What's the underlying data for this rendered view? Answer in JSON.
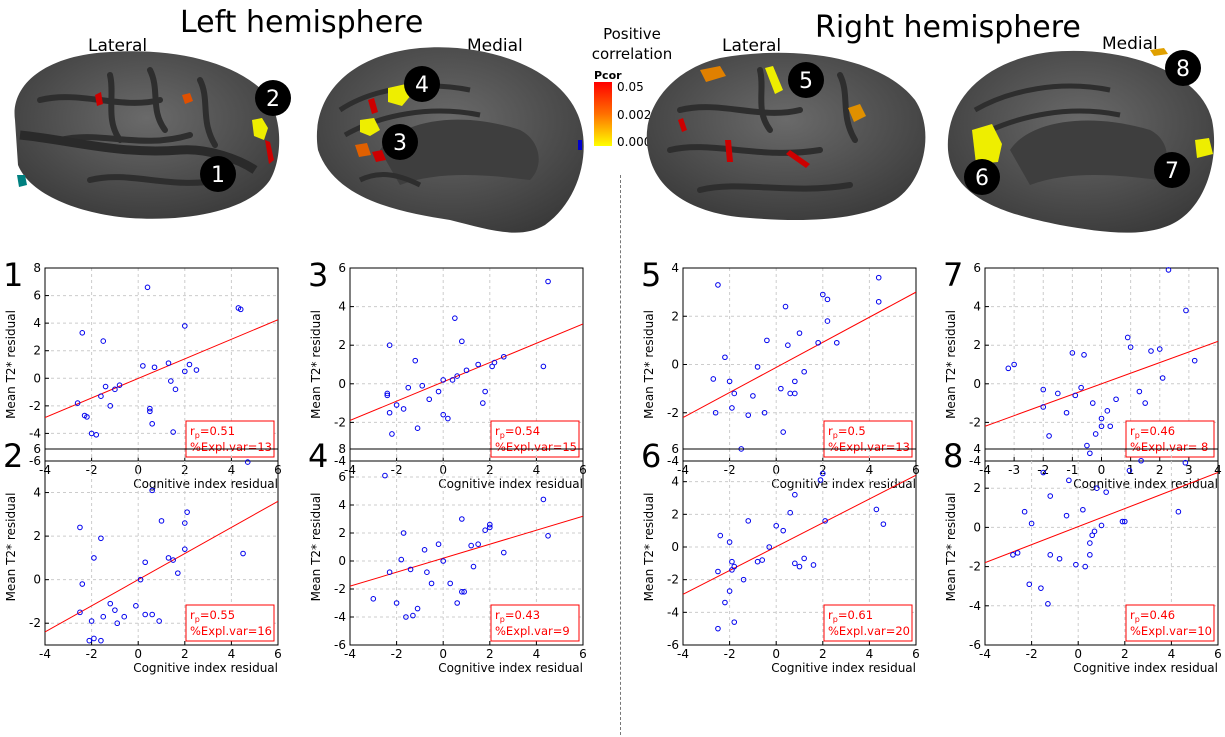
{
  "titles": {
    "left": "Left hemisphere",
    "right": "Right hemisphere",
    "views": [
      "Lateral",
      "Medial",
      "Lateral",
      "Medial"
    ]
  },
  "legend": {
    "title_line1": "Positive",
    "title_line2": "correlation",
    "label": "Pcor",
    "ticks": [
      "0.05",
      "0.002",
      "0.0001"
    ],
    "colors": [
      "#ff0000",
      "#ff8000",
      "#ffff00"
    ]
  },
  "region_markers": [
    "1",
    "2",
    "3",
    "4",
    "5",
    "6",
    "7",
    "8"
  ],
  "colors": {
    "brain_base": "#585858",
    "brain_sulci": "#3c3c3c",
    "points": "#0000ee",
    "fit_line": "#ff0000",
    "stat_text": "#ff0000",
    "grid": "#cccccc"
  },
  "chart_data": [
    {
      "panel": "1",
      "type": "scatter",
      "xlabel": "Cognitive index residual",
      "ylabel": "Mean T2* residual",
      "xlim": [
        -4,
        6
      ],
      "ylim": [
        -6,
        8
      ],
      "xticks": [
        -4,
        -2,
        0,
        2,
        4,
        6
      ],
      "yticks": [
        -6,
        -4,
        -2,
        0,
        2,
        4,
        6,
        8
      ],
      "fit": [
        [
          -4,
          -2.85
        ],
        [
          6,
          4.25
        ]
      ],
      "stat_r": "r",
      "stat_sub": "p",
      "stat_r_value": "=0.51",
      "stat_expl": "%Expl.var=13",
      "points": [
        [
          -2.6,
          -1.8
        ],
        [
          -2.4,
          3.3
        ],
        [
          -2.3,
          -2.7
        ],
        [
          -2.2,
          -2.8
        ],
        [
          -2.0,
          -4.0
        ],
        [
          -1.8,
          -4.1
        ],
        [
          -1.6,
          -1.3
        ],
        [
          -1.5,
          2.7
        ],
        [
          -1.4,
          -0.6
        ],
        [
          -1.2,
          -2.0
        ],
        [
          -1.0,
          -0.8
        ],
        [
          -0.8,
          -0.5
        ],
        [
          0.2,
          0.9
        ],
        [
          0.4,
          6.6
        ],
        [
          0.5,
          -2.4
        ],
        [
          0.5,
          -2.2
        ],
        [
          0.6,
          -3.3
        ],
        [
          0.7,
          0.8
        ],
        [
          1.3,
          1.1
        ],
        [
          1.4,
          -0.2
        ],
        [
          1.5,
          -3.9
        ],
        [
          1.6,
          -0.8
        ],
        [
          2.0,
          3.8
        ],
        [
          2.0,
          0.5
        ],
        [
          2.2,
          1.0
        ],
        [
          2.5,
          0.6
        ],
        [
          4.3,
          5.1
        ],
        [
          4.4,
          5.0
        ]
      ]
    },
    {
      "panel": "2",
      "type": "scatter",
      "xlabel": "Cognitive index residual",
      "ylabel": "Mean T2* residual",
      "xlim": [
        -4,
        6
      ],
      "ylim": [
        -3,
        6
      ],
      "xticks": [
        -4,
        -2,
        0,
        2,
        4,
        6
      ],
      "yticks": [
        -2,
        0,
        2,
        4,
        6
      ],
      "fit": [
        [
          -4,
          -2.4
        ],
        [
          6,
          3.6
        ]
      ],
      "stat_r": "r",
      "stat_sub": "p",
      "stat_r_value": "=0.55",
      "stat_expl": "%Expl.var=16",
      "points": [
        [
          -2.5,
          2.4
        ],
        [
          -2.4,
          -0.2
        ],
        [
          -2.5,
          -1.5
        ],
        [
          -2.1,
          -2.8
        ],
        [
          -2.0,
          -1.9
        ],
        [
          -1.9,
          -2.7
        ],
        [
          -1.9,
          1.0
        ],
        [
          -1.6,
          1.9
        ],
        [
          -1.6,
          -2.8
        ],
        [
          -1.5,
          -1.7
        ],
        [
          -1.2,
          -1.1
        ],
        [
          -1.0,
          -1.4
        ],
        [
          -0.9,
          -2.0
        ],
        [
          -0.6,
          -1.7
        ],
        [
          -0.1,
          -1.2
        ],
        [
          0.1,
          0.0
        ],
        [
          0.3,
          0.8
        ],
        [
          0.3,
          -1.6
        ],
        [
          0.6,
          -1.6
        ],
        [
          0.6,
          4.1
        ],
        [
          0.9,
          -1.9
        ],
        [
          1.0,
          2.7
        ],
        [
          1.3,
          1.0
        ],
        [
          1.5,
          0.9
        ],
        [
          1.7,
          0.3
        ],
        [
          2.0,
          1.4
        ],
        [
          2.0,
          2.6
        ],
        [
          2.1,
          3.1
        ],
        [
          4.5,
          1.2
        ],
        [
          4.7,
          5.4
        ]
      ]
    },
    {
      "panel": "3",
      "type": "scatter",
      "xlabel": "Cognitive index residual",
      "ylabel": "Mean T2* residual",
      "xlim": [
        -4,
        6
      ],
      "ylim": [
        -4,
        6
      ],
      "xticks": [
        -4,
        -2,
        0,
        2,
        4,
        6
      ],
      "yticks": [
        -4,
        -2,
        0,
        2,
        4,
        6
      ],
      "fit": [
        [
          -4,
          -1.9
        ],
        [
          6,
          3.1
        ]
      ],
      "stat_r": "r",
      "stat_sub": "p",
      "stat_r_value": "=0.54",
      "stat_expl": "%Expl.var=15",
      "points": [
        [
          -2.4,
          -0.5
        ],
        [
          -2.4,
          -0.6
        ],
        [
          -2.3,
          2.0
        ],
        [
          -2.3,
          -1.5
        ],
        [
          -2.2,
          -2.6
        ],
        [
          -2.0,
          -1.1
        ],
        [
          -1.7,
          -1.3
        ],
        [
          -1.5,
          -0.2
        ],
        [
          -1.2,
          1.2
        ],
        [
          -1.1,
          -2.3
        ],
        [
          -0.9,
          -0.1
        ],
        [
          -0.6,
          -0.8
        ],
        [
          -0.2,
          -0.4
        ],
        [
          0.0,
          0.2
        ],
        [
          0.0,
          -1.6
        ],
        [
          0.2,
          -1.8
        ],
        [
          0.4,
          0.2
        ],
        [
          0.5,
          3.4
        ],
        [
          0.6,
          0.4
        ],
        [
          0.8,
          2.2
        ],
        [
          1.0,
          0.7
        ],
        [
          1.5,
          1.0
        ],
        [
          1.7,
          -1.0
        ],
        [
          1.8,
          -0.4
        ],
        [
          2.1,
          0.9
        ],
        [
          2.2,
          1.1
        ],
        [
          2.6,
          1.4
        ],
        [
          4.3,
          0.9
        ],
        [
          4.5,
          5.3
        ]
      ]
    },
    {
      "panel": "4",
      "type": "scatter",
      "xlabel": "Cognitive index residual",
      "ylabel": "Mean T2* residual",
      "xlim": [
        -4,
        6
      ],
      "ylim": [
        -6,
        8
      ],
      "xticks": [
        -4,
        -2,
        0,
        2,
        4,
        6
      ],
      "yticks": [
        -6,
        -4,
        -2,
        0,
        2,
        4,
        6,
        8
      ],
      "fit": [
        [
          -4,
          -1.8
        ],
        [
          6,
          3.2
        ]
      ],
      "stat_r": "r",
      "stat_sub": "p",
      "stat_r_value": "=0.43",
      "stat_expl": "%Expl.var=9",
      "points": [
        [
          -3.0,
          -2.7
        ],
        [
          -2.5,
          6.1
        ],
        [
          -2.3,
          -0.8
        ],
        [
          -2.0,
          -3.0
        ],
        [
          -1.8,
          0.1
        ],
        [
          -1.7,
          2.0
        ],
        [
          -1.6,
          -4.0
        ],
        [
          -1.4,
          -0.6
        ],
        [
          -1.3,
          -3.9
        ],
        [
          -1.1,
          -3.4
        ],
        [
          -0.8,
          0.8
        ],
        [
          -0.7,
          -0.8
        ],
        [
          -0.5,
          -1.6
        ],
        [
          -0.2,
          1.2
        ],
        [
          0.0,
          0.0
        ],
        [
          0.3,
          -1.6
        ],
        [
          0.6,
          -3.0
        ],
        [
          0.8,
          3.0
        ],
        [
          0.8,
          -2.2
        ],
        [
          0.9,
          -2.2
        ],
        [
          1.2,
          1.1
        ],
        [
          1.3,
          -0.4
        ],
        [
          1.5,
          1.2
        ],
        [
          1.8,
          2.2
        ],
        [
          2.0,
          2.6
        ],
        [
          2.0,
          2.4
        ],
        [
          2.6,
          0.6
        ],
        [
          4.3,
          4.4
        ],
        [
          4.5,
          1.8
        ]
      ]
    },
    {
      "panel": "5",
      "type": "scatter",
      "xlabel": "Cognitive index residual",
      "ylabel": "Mean T2* residual",
      "xlim": [
        -4,
        6
      ],
      "ylim": [
        -4,
        4
      ],
      "xticks": [
        -4,
        -2,
        0,
        2,
        4,
        6
      ],
      "yticks": [
        -4,
        -2,
        0,
        2,
        4
      ],
      "fit": [
        [
          -4,
          -2.2
        ],
        [
          6,
          3.0
        ]
      ],
      "stat_r": "r",
      "stat_sub": "p",
      "stat_r_value": "=0.5",
      "stat_expl": "%Expl.var=13",
      "points": [
        [
          -2.7,
          -0.6
        ],
        [
          -2.6,
          -2.0
        ],
        [
          -2.5,
          3.3
        ],
        [
          -2.2,
          0.3
        ],
        [
          -2.0,
          -0.7
        ],
        [
          -1.9,
          -1.8
        ],
        [
          -1.8,
          -1.2
        ],
        [
          -1.5,
          -3.5
        ],
        [
          -1.2,
          -2.1
        ],
        [
          -1.0,
          -1.3
        ],
        [
          -0.8,
          -0.1
        ],
        [
          -0.5,
          -2.0
        ],
        [
          -0.4,
          1.0
        ],
        [
          0.2,
          -1.0
        ],
        [
          0.3,
          -2.8
        ],
        [
          0.4,
          2.4
        ],
        [
          0.5,
          0.8
        ],
        [
          0.6,
          -1.2
        ],
        [
          0.8,
          -1.2
        ],
        [
          0.8,
          -0.7
        ],
        [
          1.0,
          1.3
        ],
        [
          1.2,
          -0.3
        ],
        [
          1.8,
          0.9
        ],
        [
          2.0,
          2.9
        ],
        [
          2.2,
          2.7
        ],
        [
          2.2,
          1.8
        ],
        [
          2.6,
          0.9
        ],
        [
          4.4,
          3.6
        ],
        [
          4.4,
          2.6
        ]
      ]
    },
    {
      "panel": "6",
      "type": "scatter",
      "xlabel": "Cognitive index residual",
      "ylabel": "Mean T2* residual",
      "xlim": [
        -4,
        6
      ],
      "ylim": [
        -6,
        6
      ],
      "xticks": [
        -4,
        -2,
        0,
        2,
        4,
        6
      ],
      "yticks": [
        -6,
        -4,
        -2,
        0,
        2,
        4,
        6
      ],
      "fit": [
        [
          -4,
          -2.9
        ],
        [
          6,
          4.4
        ]
      ],
      "stat_r": "r",
      "stat_sub": "p",
      "stat_r_value": "=0.61",
      "stat_expl": "%Expl.var=20",
      "points": [
        [
          -2.5,
          -5.0
        ],
        [
          -2.5,
          -1.5
        ],
        [
          -2.4,
          0.7
        ],
        [
          -2.2,
          -3.4
        ],
        [
          -2.0,
          0.3
        ],
        [
          -2.0,
          -2.7
        ],
        [
          -1.9,
          -0.9
        ],
        [
          -1.9,
          -1.4
        ],
        [
          -1.8,
          -4.6
        ],
        [
          -1.8,
          -1.2
        ],
        [
          -1.4,
          -2.0
        ],
        [
          -1.2,
          1.6
        ],
        [
          -0.8,
          -0.9
        ],
        [
          -0.6,
          -0.8
        ],
        [
          -0.3,
          0.0
        ],
        [
          0.0,
          1.3
        ],
        [
          0.3,
          1.0
        ],
        [
          0.6,
          2.1
        ],
        [
          0.8,
          -1.0
        ],
        [
          1.0,
          -1.2
        ],
        [
          1.2,
          -0.7
        ],
        [
          1.6,
          -1.1
        ],
        [
          1.9,
          4.1
        ],
        [
          2.0,
          4.5
        ],
        [
          2.1,
          1.6
        ],
        [
          4.3,
          2.3
        ],
        [
          4.6,
          1.4
        ],
        [
          0.8,
          3.2
        ]
      ]
    },
    {
      "panel": "7",
      "type": "scatter",
      "xlabel": "Cognitive index residual",
      "ylabel": "Mean T2* residual",
      "xlim": [
        -4,
        4
      ],
      "ylim": [
        -4,
        6
      ],
      "xticks": [
        -4,
        -3,
        -2,
        -1,
        0,
        1,
        2,
        3,
        4
      ],
      "yticks": [
        -4,
        -2,
        0,
        2,
        4,
        6
      ],
      "fit": [
        [
          -4,
          -2.2
        ],
        [
          4,
          2.2
        ]
      ],
      "stat_r": "r",
      "stat_sub": "p",
      "stat_r_value": "=0.46",
      "stat_expl": "%Expl.var= 8",
      "points": [
        [
          -3.2,
          0.8
        ],
        [
          -3.0,
          1.0
        ],
        [
          -2.0,
          -0.3
        ],
        [
          -2.0,
          -1.2
        ],
        [
          -1.8,
          -2.7
        ],
        [
          -1.5,
          -0.5
        ],
        [
          -1.2,
          -1.5
        ],
        [
          -1.0,
          1.6
        ],
        [
          -0.9,
          -0.6
        ],
        [
          -0.7,
          -0.2
        ],
        [
          -0.6,
          1.5
        ],
        [
          -0.5,
          -3.2
        ],
        [
          -0.4,
          -3.6
        ],
        [
          -0.3,
          -1.0
        ],
        [
          -0.2,
          -2.6
        ],
        [
          0.0,
          -1.8
        ],
        [
          0.0,
          -2.2
        ],
        [
          0.2,
          -1.4
        ],
        [
          0.3,
          -2.2
        ],
        [
          0.5,
          -0.8
        ],
        [
          0.9,
          2.4
        ],
        [
          1.0,
          1.9
        ],
        [
          1.3,
          -0.4
        ],
        [
          1.5,
          -1.0
        ],
        [
          1.7,
          1.7
        ],
        [
          2.0,
          1.8
        ],
        [
          2.1,
          0.3
        ],
        [
          2.3,
          5.9
        ],
        [
          2.9,
          3.8
        ],
        [
          3.2,
          1.2
        ]
      ]
    },
    {
      "panel": "8",
      "type": "scatter",
      "xlabel": "Cognitive index residual",
      "ylabel": "Mean T2* residual",
      "xlim": [
        -4,
        6
      ],
      "ylim": [
        -6,
        4
      ],
      "xticks": [
        -4,
        -2,
        0,
        2,
        4,
        6
      ],
      "yticks": [
        -6,
        -4,
        -2,
        0,
        2,
        4
      ],
      "fit": [
        [
          -4,
          -1.8
        ],
        [
          6,
          2.8
        ]
      ],
      "stat_r": "r",
      "stat_sub": "p",
      "stat_r_value": "=0.46",
      "stat_expl": "%Expl.var=10",
      "points": [
        [
          -2.8,
          -1.4
        ],
        [
          -2.6,
          -1.3
        ],
        [
          -2.3,
          0.8
        ],
        [
          -2.1,
          -2.9
        ],
        [
          -2.0,
          0.2
        ],
        [
          -1.6,
          -3.1
        ],
        [
          -1.5,
          2.8
        ],
        [
          -1.3,
          -3.9
        ],
        [
          -1.2,
          1.6
        ],
        [
          -1.2,
          -1.4
        ],
        [
          -0.8,
          -1.6
        ],
        [
          -0.5,
          0.6
        ],
        [
          -0.4,
          2.4
        ],
        [
          -0.1,
          -1.9
        ],
        [
          0.2,
          0.9
        ],
        [
          0.3,
          -2.0
        ],
        [
          0.5,
          -1.4
        ],
        [
          0.5,
          -0.8
        ],
        [
          0.6,
          -0.4
        ],
        [
          0.7,
          -0.2
        ],
        [
          0.8,
          2.0
        ],
        [
          1.0,
          0.1
        ],
        [
          1.2,
          1.8
        ],
        [
          1.9,
          0.3
        ],
        [
          2.0,
          0.3
        ],
        [
          2.2,
          2.9
        ],
        [
          2.7,
          3.4
        ],
        [
          4.3,
          0.8
        ],
        [
          4.6,
          3.3
        ]
      ]
    }
  ]
}
